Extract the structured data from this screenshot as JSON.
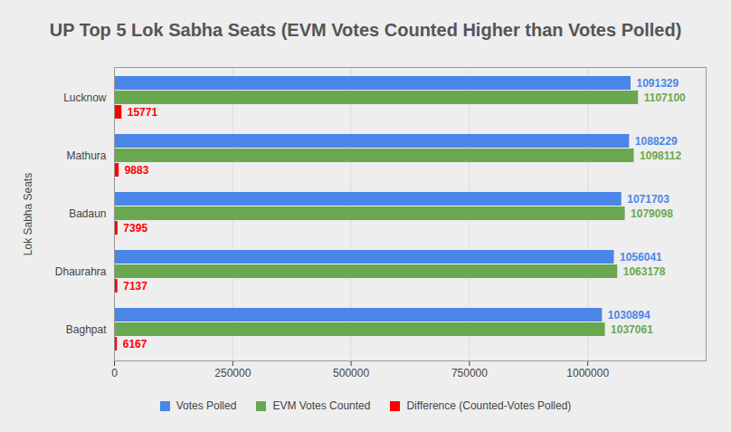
{
  "chart_data": {
    "type": "bar",
    "orientation": "horizontal",
    "title": "UP Top 5 Lok Sabha Seats (EVM Votes Counted Higher than Votes Polled)",
    "ylabel": "Lok Sabha Seats",
    "categories": [
      "Lucknow",
      "Mathura",
      "Badaun",
      "Dhaurahra",
      "Baghpat"
    ],
    "series": [
      {
        "name": "Votes Polled",
        "color": "#4a86e8",
        "values": [
          1091329,
          1088229,
          1071703,
          1056041,
          1030894
        ]
      },
      {
        "name": "EVM Votes Counted",
        "color": "#6aa84f",
        "values": [
          1107100,
          1098112,
          1079098,
          1063178,
          1037061
        ]
      },
      {
        "name": "Difference (Counted-Votes Polled)",
        "color": "#ff0000",
        "values": [
          15771,
          9883,
          7395,
          7137,
          6167
        ]
      }
    ],
    "xlim": [
      0,
      1250000
    ],
    "xticks": [
      0,
      250000,
      500000,
      750000,
      1000000
    ],
    "grid": true,
    "legend": "bottom",
    "data_labels": true
  }
}
